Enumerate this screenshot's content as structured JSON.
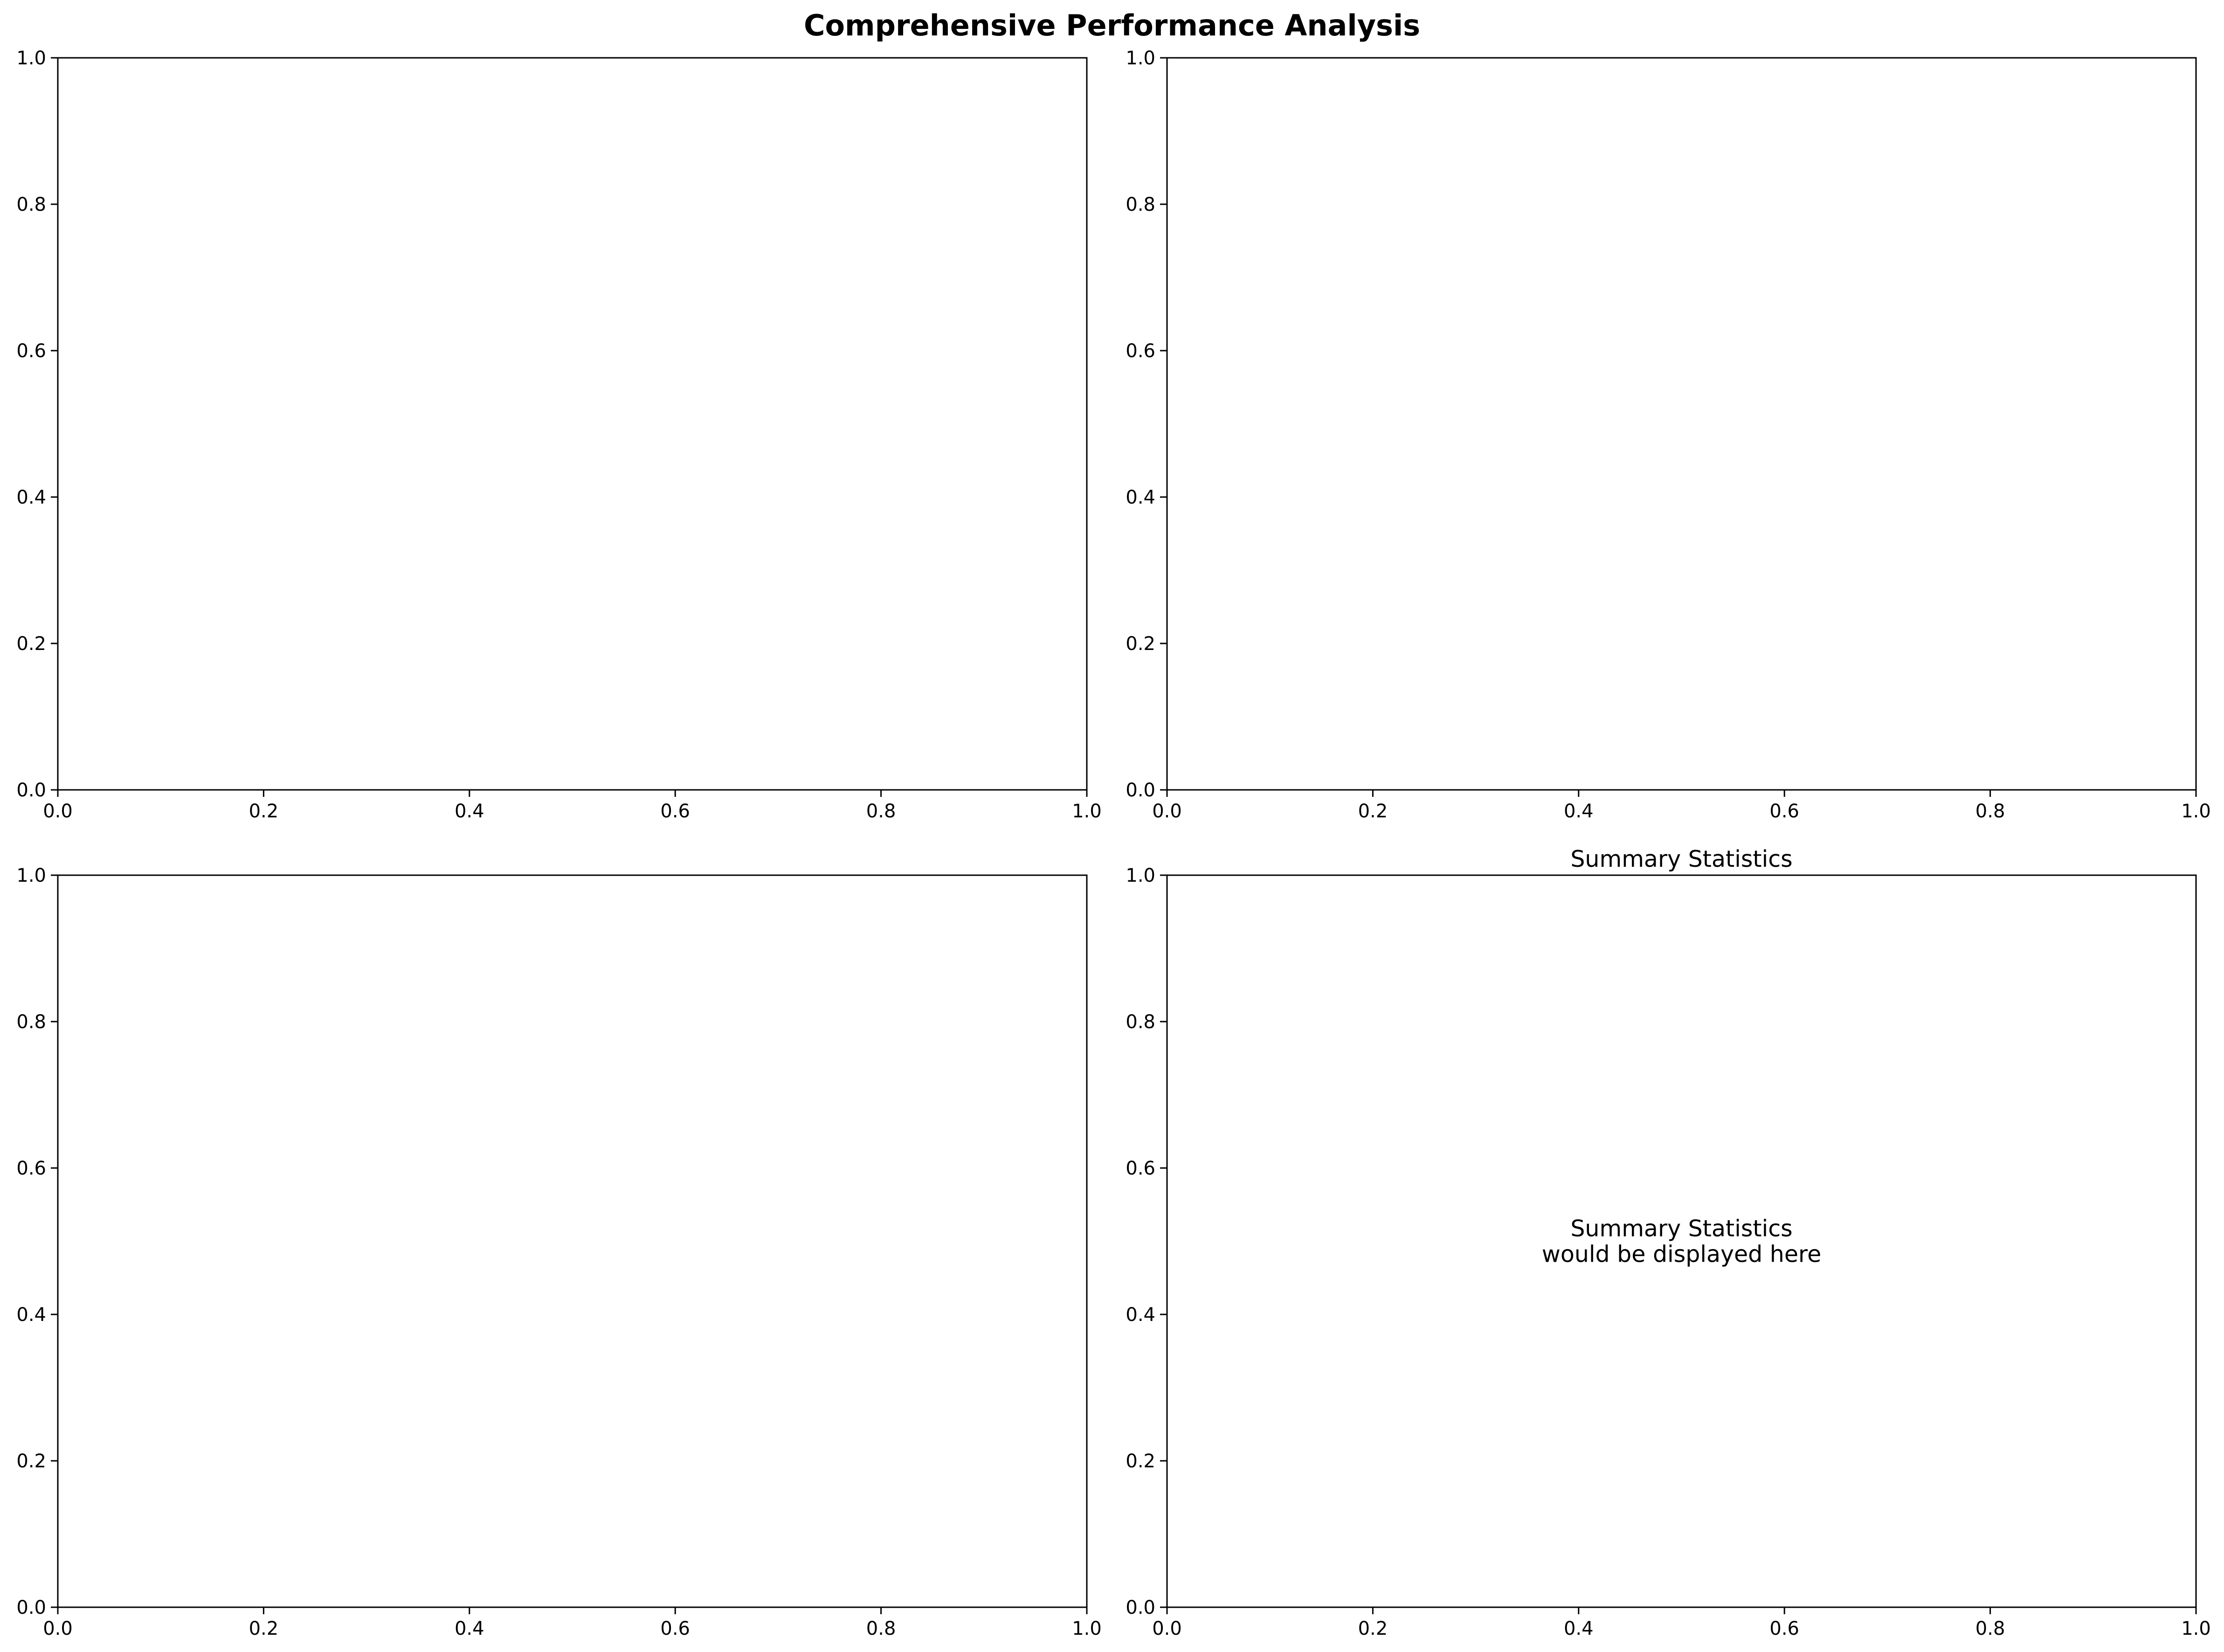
{
  "figure": {
    "title": "Comprehensive Performance Analysis"
  },
  "chart_data": [
    {
      "type": "scatter",
      "title": "",
      "xlabel": "",
      "ylabel": "",
      "xlim": [
        0,
        1
      ],
      "ylim": [
        0,
        1
      ],
      "x_ticks": [
        "0.0",
        "0.2",
        "0.4",
        "0.6",
        "0.8",
        "1.0"
      ],
      "y_ticks": [
        "0.0",
        "0.2",
        "0.4",
        "0.6",
        "0.8",
        "1.0"
      ],
      "grid": false,
      "series": [],
      "annotation": ""
    },
    {
      "type": "scatter",
      "title": "",
      "xlabel": "",
      "ylabel": "",
      "xlim": [
        0,
        1
      ],
      "ylim": [
        0,
        1
      ],
      "x_ticks": [
        "0.0",
        "0.2",
        "0.4",
        "0.6",
        "0.8",
        "1.0"
      ],
      "y_ticks": [
        "0.0",
        "0.2",
        "0.4",
        "0.6",
        "0.8",
        "1.0"
      ],
      "grid": false,
      "series": [],
      "annotation": ""
    },
    {
      "type": "scatter",
      "title": "",
      "xlabel": "",
      "ylabel": "",
      "xlim": [
        0,
        1
      ],
      "ylim": [
        0,
        1
      ],
      "x_ticks": [
        "0.0",
        "0.2",
        "0.4",
        "0.6",
        "0.8",
        "1.0"
      ],
      "y_ticks": [
        "0.0",
        "0.2",
        "0.4",
        "0.6",
        "0.8",
        "1.0"
      ],
      "grid": false,
      "series": [],
      "annotation": ""
    },
    {
      "type": "scatter",
      "title": "Summary Statistics",
      "xlabel": "",
      "ylabel": "",
      "xlim": [
        0,
        1
      ],
      "ylim": [
        0,
        1
      ],
      "x_ticks": [
        "0.0",
        "0.2",
        "0.4",
        "0.6",
        "0.8",
        "1.0"
      ],
      "y_ticks": [
        "0.0",
        "0.2",
        "0.4",
        "0.6",
        "0.8",
        "1.0"
      ],
      "grid": false,
      "series": [],
      "annotation": "Summary Statistics\nwould be displayed here"
    }
  ]
}
